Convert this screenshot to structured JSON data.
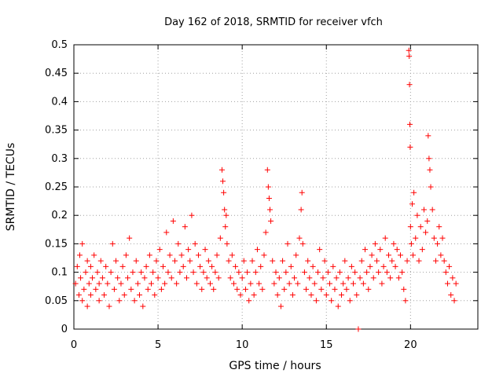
{
  "chart_data": {
    "type": "scatter",
    "title": "Day 162 of 2018, SRMTID for receiver vfch",
    "xlabel": "GPS time / hours",
    "ylabel": "SRMTID / TECUs",
    "xlim": [
      0,
      24
    ],
    "ylim": [
      0,
      0.5
    ],
    "x_ticks": [
      0,
      5,
      10,
      15,
      20
    ],
    "x_tick_labels": [
      "0",
      "5",
      "10",
      "15",
      "20"
    ],
    "y_ticks": [
      0,
      0.05,
      0.1,
      0.15,
      0.2,
      0.25,
      0.3,
      0.35,
      0.4,
      0.45,
      0.5
    ],
    "y_tick_labels": [
      "0",
      "0.05",
      "0.1",
      "0.15",
      "0.2",
      "0.25",
      "0.3",
      "0.35",
      "0.4",
      "0.45",
      "0.5"
    ],
    "grid": true,
    "marker": "+",
    "color": "#ff0000",
    "series": [
      {
        "name": "SRMTID",
        "points": [
          [
            0.1,
            0.08
          ],
          [
            0.2,
            0.11
          ],
          [
            0.3,
            0.06
          ],
          [
            0.35,
            0.13
          ],
          [
            0.4,
            0.09
          ],
          [
            0.5,
            0.05
          ],
          [
            0.5,
            0.15
          ],
          [
            0.6,
            0.07
          ],
          [
            0.7,
            0.1
          ],
          [
            0.8,
            0.04
          ],
          [
            0.8,
            0.12
          ],
          [
            0.9,
            0.08
          ],
          [
            1.0,
            0.06
          ],
          [
            1.0,
            0.11
          ],
          [
            1.1,
            0.09
          ],
          [
            1.2,
            0.13
          ],
          [
            1.3,
            0.07
          ],
          [
            1.4,
            0.1
          ],
          [
            1.5,
            0.05
          ],
          [
            1.5,
            0.08
          ],
          [
            1.6,
            0.12
          ],
          [
            1.7,
            0.09
          ],
          [
            1.8,
            0.06
          ],
          [
            1.9,
            0.11
          ],
          [
            2.0,
            0.08
          ],
          [
            2.1,
            0.04
          ],
          [
            2.2,
            0.1
          ],
          [
            2.3,
            0.15
          ],
          [
            2.4,
            0.07
          ],
          [
            2.5,
            0.12
          ],
          [
            2.6,
            0.09
          ],
          [
            2.7,
            0.05
          ],
          [
            2.8,
            0.08
          ],
          [
            2.9,
            0.11
          ],
          [
            3.0,
            0.06
          ],
          [
            3.1,
            0.13
          ],
          [
            3.2,
            0.09
          ],
          [
            3.3,
            0.16
          ],
          [
            3.4,
            0.07
          ],
          [
            3.5,
            0.1
          ],
          [
            3.6,
            0.05
          ],
          [
            3.7,
            0.12
          ],
          [
            3.8,
            0.08
          ],
          [
            3.9,
            0.06
          ],
          [
            4.0,
            0.1
          ],
          [
            4.1,
            0.04
          ],
          [
            4.2,
            0.09
          ],
          [
            4.3,
            0.11
          ],
          [
            4.4,
            0.07
          ],
          [
            4.5,
            0.13
          ],
          [
            4.6,
            0.08
          ],
          [
            4.7,
            0.1
          ],
          [
            4.8,
            0.06
          ],
          [
            4.9,
            0.12
          ],
          [
            5.0,
            0.09
          ],
          [
            5.1,
            0.14
          ],
          [
            5.2,
            0.07
          ],
          [
            5.3,
            0.11
          ],
          [
            5.4,
            0.08
          ],
          [
            5.5,
            0.17
          ],
          [
            5.6,
            0.1
          ],
          [
            5.7,
            0.13
          ],
          [
            5.8,
            0.09
          ],
          [
            5.9,
            0.19
          ],
          [
            6.0,
            0.12
          ],
          [
            6.1,
            0.08
          ],
          [
            6.2,
            0.15
          ],
          [
            6.3,
            0.1
          ],
          [
            6.4,
            0.13
          ],
          [
            6.5,
            0.11
          ],
          [
            6.6,
            0.18
          ],
          [
            6.7,
            0.09
          ],
          [
            6.8,
            0.14
          ],
          [
            6.9,
            0.12
          ],
          [
            7.0,
            0.2
          ],
          [
            7.1,
            0.1
          ],
          [
            7.2,
            0.15
          ],
          [
            7.3,
            0.08
          ],
          [
            7.4,
            0.13
          ],
          [
            7.5,
            0.11
          ],
          [
            7.6,
            0.07
          ],
          [
            7.7,
            0.1
          ],
          [
            7.8,
            0.14
          ],
          [
            7.9,
            0.09
          ],
          [
            8.0,
            0.12
          ],
          [
            8.1,
            0.08
          ],
          [
            8.2,
            0.11
          ],
          [
            8.3,
            0.07
          ],
          [
            8.4,
            0.1
          ],
          [
            8.5,
            0.13
          ],
          [
            8.6,
            0.09
          ],
          [
            8.7,
            0.16
          ],
          [
            8.8,
            0.28
          ],
          [
            8.85,
            0.26
          ],
          [
            8.9,
            0.24
          ],
          [
            8.95,
            0.21
          ],
          [
            9.0,
            0.18
          ],
          [
            9.05,
            0.2
          ],
          [
            9.1,
            0.15
          ],
          [
            9.2,
            0.12
          ],
          [
            9.3,
            0.09
          ],
          [
            9.4,
            0.13
          ],
          [
            9.5,
            0.08
          ],
          [
            9.6,
            0.11
          ],
          [
            9.7,
            0.07
          ],
          [
            9.8,
            0.1
          ],
          [
            9.9,
            0.06
          ],
          [
            10.0,
            0.09
          ],
          [
            10.1,
            0.12
          ],
          [
            10.2,
            0.07
          ],
          [
            10.3,
            0.1
          ],
          [
            10.4,
            0.05
          ],
          [
            10.5,
            0.08
          ],
          [
            10.6,
            0.12
          ],
          [
            10.7,
            0.06
          ],
          [
            10.8,
            0.1
          ],
          [
            10.9,
            0.14
          ],
          [
            11.0,
            0.08
          ],
          [
            11.1,
            0.11
          ],
          [
            11.2,
            0.07
          ],
          [
            11.3,
            0.13
          ],
          [
            11.4,
            0.17
          ],
          [
            11.5,
            0.28
          ],
          [
            11.55,
            0.25
          ],
          [
            11.6,
            0.23
          ],
          [
            11.65,
            0.21
          ],
          [
            11.7,
            0.19
          ],
          [
            11.8,
            0.12
          ],
          [
            11.9,
            0.08
          ],
          [
            12.0,
            0.1
          ],
          [
            12.1,
            0.06
          ],
          [
            12.2,
            0.09
          ],
          [
            12.3,
            0.04
          ],
          [
            12.4,
            0.12
          ],
          [
            12.5,
            0.07
          ],
          [
            12.6,
            0.1
          ],
          [
            12.7,
            0.15
          ],
          [
            12.8,
            0.08
          ],
          [
            12.9,
            0.11
          ],
          [
            13.0,
            0.06
          ],
          [
            13.1,
            0.09
          ],
          [
            13.2,
            0.13
          ],
          [
            13.3,
            0.08
          ],
          [
            13.4,
            0.16
          ],
          [
            13.5,
            0.21
          ],
          [
            13.55,
            0.24
          ],
          [
            13.6,
            0.15
          ],
          [
            13.7,
            0.1
          ],
          [
            13.8,
            0.07
          ],
          [
            13.9,
            0.12
          ],
          [
            14.0,
            0.09
          ],
          [
            14.1,
            0.06
          ],
          [
            14.2,
            0.11
          ],
          [
            14.3,
            0.08
          ],
          [
            14.4,
            0.05
          ],
          [
            14.5,
            0.1
          ],
          [
            14.6,
            0.14
          ],
          [
            14.7,
            0.07
          ],
          [
            14.8,
            0.09
          ],
          [
            14.9,
            0.12
          ],
          [
            15.0,
            0.06
          ],
          [
            15.1,
            0.1
          ],
          [
            15.2,
            0.08
          ],
          [
            15.3,
            0.05
          ],
          [
            15.4,
            0.11
          ],
          [
            15.5,
            0.07
          ],
          [
            15.6,
            0.09
          ],
          [
            15.7,
            0.04
          ],
          [
            15.8,
            0.1
          ],
          [
            15.9,
            0.06
          ],
          [
            16.0,
            0.08
          ],
          [
            16.1,
            0.12
          ],
          [
            16.2,
            0.07
          ],
          [
            16.3,
            0.09
          ],
          [
            16.4,
            0.05
          ],
          [
            16.5,
            0.11
          ],
          [
            16.6,
            0.08
          ],
          [
            16.7,
            0.1
          ],
          [
            16.8,
            0.06
          ],
          [
            16.9,
            0.0
          ],
          [
            17.0,
            0.09
          ],
          [
            17.1,
            0.12
          ],
          [
            17.2,
            0.08
          ],
          [
            17.3,
            0.14
          ],
          [
            17.4,
            0.1
          ],
          [
            17.5,
            0.07
          ],
          [
            17.6,
            0.11
          ],
          [
            17.7,
            0.13
          ],
          [
            17.8,
            0.09
          ],
          [
            17.9,
            0.15
          ],
          [
            18.0,
            0.12
          ],
          [
            18.1,
            0.1
          ],
          [
            18.2,
            0.14
          ],
          [
            18.3,
            0.08
          ],
          [
            18.4,
            0.11
          ],
          [
            18.5,
            0.16
          ],
          [
            18.6,
            0.1
          ],
          [
            18.7,
            0.13
          ],
          [
            18.8,
            0.09
          ],
          [
            18.9,
            0.12
          ],
          [
            19.0,
            0.15
          ],
          [
            19.1,
            0.11
          ],
          [
            19.2,
            0.14
          ],
          [
            19.3,
            0.09
          ],
          [
            19.4,
            0.13
          ],
          [
            19.5,
            0.1
          ],
          [
            19.6,
            0.07
          ],
          [
            19.7,
            0.05
          ],
          [
            19.8,
            0.12
          ],
          [
            19.9,
            0.49
          ],
          [
            19.92,
            0.48
          ],
          [
            19.94,
            0.43
          ],
          [
            19.96,
            0.36
          ],
          [
            19.98,
            0.32
          ],
          [
            20.0,
            0.18
          ],
          [
            20.05,
            0.15
          ],
          [
            20.1,
            0.22
          ],
          [
            20.15,
            0.13
          ],
          [
            20.2,
            0.24
          ],
          [
            20.3,
            0.16
          ],
          [
            20.4,
            0.2
          ],
          [
            20.5,
            0.12
          ],
          [
            20.6,
            0.18
          ],
          [
            20.7,
            0.14
          ],
          [
            20.8,
            0.21
          ],
          [
            20.9,
            0.17
          ],
          [
            21.0,
            0.19
          ],
          [
            21.05,
            0.34
          ],
          [
            21.1,
            0.3
          ],
          [
            21.15,
            0.28
          ],
          [
            21.2,
            0.25
          ],
          [
            21.3,
            0.21
          ],
          [
            21.4,
            0.16
          ],
          [
            21.5,
            0.12
          ],
          [
            21.6,
            0.15
          ],
          [
            21.7,
            0.18
          ],
          [
            21.8,
            0.13
          ],
          [
            21.9,
            0.16
          ],
          [
            22.0,
            0.12
          ],
          [
            22.1,
            0.1
          ],
          [
            22.2,
            0.08
          ],
          [
            22.3,
            0.11
          ],
          [
            22.4,
            0.06
          ],
          [
            22.5,
            0.09
          ],
          [
            22.6,
            0.05
          ],
          [
            22.7,
            0.08
          ]
        ]
      }
    ]
  }
}
